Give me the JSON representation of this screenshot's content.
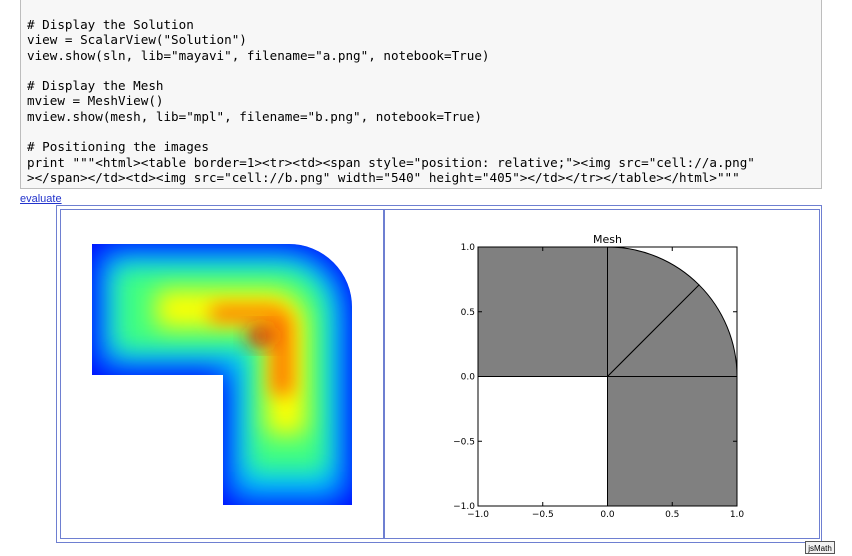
{
  "code_lines": [
    "# Display the Solution",
    "view = ScalarView(\"Solution\")",
    "view.show(sln, lib=\"mayavi\", filename=\"a.png\", notebook=True)",
    "",
    "# Display the Mesh",
    "mview = MeshView()",
    "mview.show(mesh, lib=\"mpl\", filename=\"b.png\", notebook=True)",
    "",
    "# Positioning the images",
    "print \"\"\"<html><table border=1><tr><td><span style=\"position: relative;\"><img src=\"cell://a.png\"",
    "></span></td><td><img src=\"cell://b.png\" width=\"540\" height=\"405\"></td></tr></table></html>\"\"\""
  ],
  "evaluate_label": "evaluate",
  "jsmath_label": "jsMath",
  "chart_data": {
    "type": "mesh",
    "title": "Mesh",
    "xlim": [
      -1.0,
      1.0
    ],
    "ylim": [
      -1.0,
      1.0
    ],
    "xticks": [
      "-1.0",
      "-0.5",
      "0.0",
      "0.5",
      "1.0"
    ],
    "yticks": [
      "1.0",
      "0.5",
      "0.0",
      "-0.5",
      "-1.0"
    ],
    "fill_color": "#808080",
    "elements": [
      {
        "name": "element-top-left",
        "vertices": [
          [
            -1,
            0
          ],
          [
            0,
            0
          ],
          [
            0,
            1
          ],
          [
            -1,
            1
          ]
        ]
      },
      {
        "name": "element-bottom-right",
        "vertices": [
          [
            0,
            -1
          ],
          [
            1,
            -1
          ],
          [
            1,
            0
          ],
          [
            0,
            0
          ]
        ]
      },
      {
        "name": "element-quarter-arc-upper",
        "vertices": [
          [
            0,
            0
          ],
          [
            0.707,
            0.707
          ],
          "arc",
          [
            0,
            1
          ]
        ]
      },
      {
        "name": "element-quarter-arc-lower",
        "vertices": [
          [
            0,
            0
          ],
          [
            1,
            0
          ],
          "arc",
          [
            0.707,
            0.707
          ]
        ]
      }
    ]
  }
}
